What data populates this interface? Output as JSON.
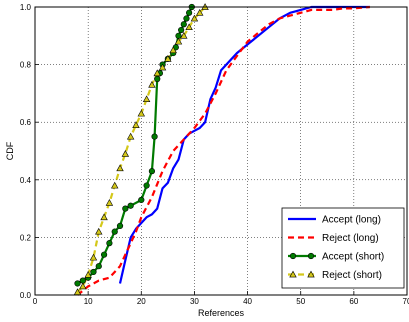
{
  "chart_data": {
    "type": "line",
    "xlabel": "References",
    "ylabel": "CDF",
    "xlim": [
      0,
      70
    ],
    "ylim": [
      0,
      1.0
    ],
    "grid": true,
    "legend_position": "bottom-right",
    "x_ticks": [
      "0",
      "10",
      "20",
      "30",
      "40",
      "50",
      "60",
      "70"
    ],
    "y_ticks": [
      "0.0",
      "0.2",
      "0.4",
      "0.6",
      "0.8",
      "1.0"
    ],
    "series": [
      {
        "name": "Accept (long)",
        "color": "#0000ff",
        "line_style": "solid",
        "marker": "none",
        "x": [
          16,
          17,
          18,
          19,
          20,
          21,
          22,
          23,
          24,
          25,
          26,
          27,
          28,
          29,
          30,
          31,
          32,
          33,
          34,
          35,
          36,
          38,
          40,
          42,
          44,
          46,
          48,
          50,
          52,
          63
        ],
        "y": [
          0.04,
          0.12,
          0.2,
          0.23,
          0.25,
          0.27,
          0.28,
          0.3,
          0.37,
          0.39,
          0.44,
          0.47,
          0.54,
          0.56,
          0.57,
          0.58,
          0.6,
          0.68,
          0.72,
          0.78,
          0.8,
          0.84,
          0.87,
          0.9,
          0.93,
          0.96,
          0.98,
          0.99,
          1.0,
          1.0
        ]
      },
      {
        "name": "Reject (long)",
        "color": "#ff0000",
        "line_style": "dashed",
        "marker": "none",
        "x": [
          8,
          10,
          12,
          14,
          16,
          17,
          18,
          19,
          20,
          22,
          24,
          26,
          28,
          30,
          32,
          34,
          36,
          38,
          40,
          42,
          44,
          46,
          48,
          50,
          52,
          54,
          56,
          58,
          60,
          63
        ],
        "y": [
          0.0,
          0.03,
          0.05,
          0.06,
          0.1,
          0.14,
          0.18,
          0.22,
          0.27,
          0.34,
          0.43,
          0.5,
          0.54,
          0.58,
          0.63,
          0.7,
          0.78,
          0.83,
          0.88,
          0.91,
          0.94,
          0.96,
          0.97,
          0.98,
          0.99,
          0.99,
          0.99,
          0.995,
          0.995,
          1.0
        ]
      },
      {
        "name": "Accept (short)",
        "color": "#007a00",
        "line_style": "solid",
        "marker": "circle",
        "x": [
          8,
          9,
          10,
          11,
          12,
          13,
          14,
          15,
          16,
          17,
          18,
          20,
          21,
          22,
          22.5,
          23,
          23.5,
          24,
          25,
          26,
          26.5,
          27,
          27.5,
          28,
          28.5,
          29,
          29.5
        ],
        "y": [
          0.04,
          0.05,
          0.06,
          0.08,
          0.1,
          0.14,
          0.18,
          0.22,
          0.24,
          0.3,
          0.31,
          0.33,
          0.38,
          0.43,
          0.55,
          0.75,
          0.77,
          0.8,
          0.82,
          0.84,
          0.86,
          0.9,
          0.92,
          0.94,
          0.96,
          0.98,
          1.0
        ]
      },
      {
        "name": "Reject (short)",
        "color": "#d4c81a",
        "line_style": "dashed",
        "marker": "triangle",
        "x": [
          8,
          9,
          10,
          11,
          12,
          13,
          14,
          15,
          16,
          17,
          18,
          19,
          20,
          21,
          22,
          23,
          24,
          25,
          26,
          27,
          28,
          29,
          30,
          31,
          32
        ],
        "y": [
          0.01,
          0.03,
          0.07,
          0.13,
          0.22,
          0.27,
          0.32,
          0.38,
          0.44,
          0.49,
          0.55,
          0.59,
          0.63,
          0.68,
          0.73,
          0.77,
          0.79,
          0.82,
          0.85,
          0.88,
          0.9,
          0.93,
          0.96,
          0.98,
          1.0
        ]
      }
    ]
  }
}
